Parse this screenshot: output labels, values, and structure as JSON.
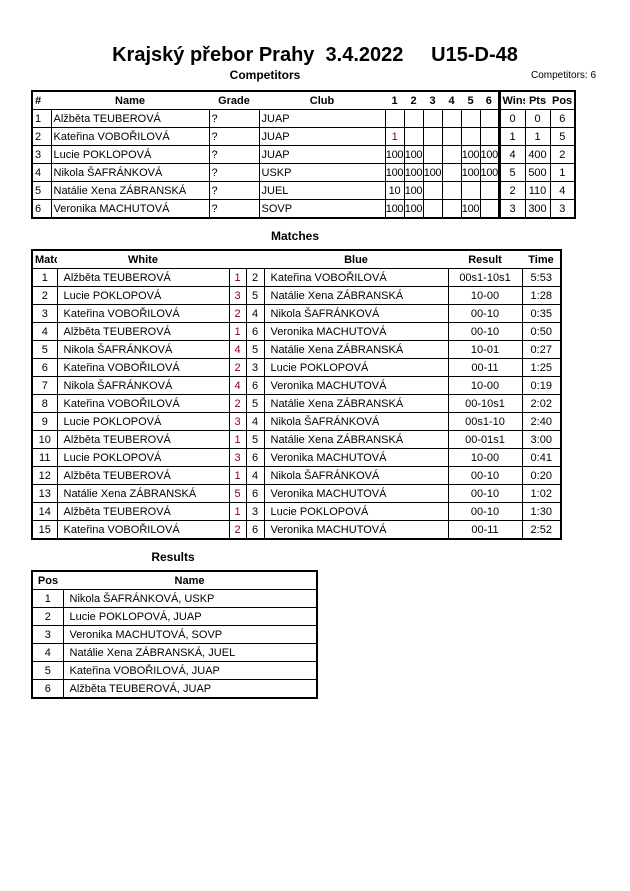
{
  "header": {
    "title": "Krajský přebor Prahy  3.4.2022     U15-D-48",
    "competitors_heading": "Competitors",
    "competitors_count": "Competitors: 6"
  },
  "competitors": {
    "columns": [
      "#",
      "Name",
      "Grade",
      "Club",
      "1",
      "2",
      "3",
      "4",
      "5",
      "6",
      "Wins",
      "Pts",
      "Pos"
    ],
    "rows": [
      {
        "n": "1",
        "name": "Alžběta TEUBEROVÁ",
        "grade": "?",
        "club": "JUAP",
        "s": [
          "",
          "",
          "",
          "",
          "",
          ""
        ],
        "wins": "0",
        "pts": "0",
        "pos": "6"
      },
      {
        "n": "2",
        "name": "Kateřina VOBOŘILOVÁ",
        "grade": "?",
        "club": "JUAP",
        "s": [
          "1",
          "",
          "",
          "",
          "",
          ""
        ],
        "wins": "1",
        "pts": "1",
        "pos": "5"
      },
      {
        "n": "3",
        "name": "Lucie POKLOPOVÁ",
        "grade": "?",
        "club": "JUAP",
        "s": [
          "100",
          "100",
          "",
          "",
          "100",
          "100"
        ],
        "wins": "4",
        "pts": "400",
        "pos": "2"
      },
      {
        "n": "4",
        "name": "Nikola ŠAFRÁNKOVÁ",
        "grade": "?",
        "club": "USKP",
        "s": [
          "100",
          "100",
          "100",
          "",
          "100",
          "100"
        ],
        "wins": "5",
        "pts": "500",
        "pos": "1"
      },
      {
        "n": "5",
        "name": "Natálie Xena ZÁBRANSKÁ",
        "grade": "?",
        "club": "JUEL",
        "s": [
          "10",
          "100",
          "",
          "",
          "",
          ""
        ],
        "wins": "2",
        "pts": "110",
        "pos": "4"
      },
      {
        "n": "6",
        "name": "Veronika MACHUTOVÁ",
        "grade": "?",
        "club": "SOVP",
        "s": [
          "100",
          "100",
          "",
          "",
          "100",
          ""
        ],
        "wins": "3",
        "pts": "300",
        "pos": "3"
      }
    ]
  },
  "matches": {
    "heading": "Matches",
    "columns": [
      "Match",
      "White",
      "Blue",
      "Result",
      "Time"
    ],
    "rows": [
      [
        "1",
        "Alžběta TEUBEROVÁ",
        "1",
        "2",
        "Kateřina VOBOŘILOVÁ",
        "00s1-10s1",
        "5:53"
      ],
      [
        "2",
        "Lucie POKLOPOVÁ",
        "3",
        "5",
        "Natálie Xena ZÁBRANSKÁ",
        "10-00",
        "1:28"
      ],
      [
        "3",
        "Kateřina VOBOŘILOVÁ",
        "2",
        "4",
        "Nikola ŠAFRÁNKOVÁ",
        "00-10",
        "0:35"
      ],
      [
        "4",
        "Alžběta TEUBEROVÁ",
        "1",
        "6",
        "Veronika MACHUTOVÁ",
        "00-10",
        "0:50"
      ],
      [
        "5",
        "Nikola ŠAFRÁNKOVÁ",
        "4",
        "5",
        "Natálie Xena ZÁBRANSKÁ",
        "10-01",
        "0:27"
      ],
      [
        "6",
        "Kateřina VOBOŘILOVÁ",
        "2",
        "3",
        "Lucie POKLOPOVÁ",
        "00-11",
        "1:25"
      ],
      [
        "7",
        "Nikola ŠAFRÁNKOVÁ",
        "4",
        "6",
        "Veronika MACHUTOVÁ",
        "10-00",
        "0:19"
      ],
      [
        "8",
        "Kateřina VOBOŘILOVÁ",
        "2",
        "5",
        "Natálie Xena ZÁBRANSKÁ",
        "00-10s1",
        "2:02"
      ],
      [
        "9",
        "Lucie POKLOPOVÁ",
        "3",
        "4",
        "Nikola ŠAFRÁNKOVÁ",
        "00s1-10",
        "2:40"
      ],
      [
        "10",
        "Alžběta TEUBEROVÁ",
        "1",
        "5",
        "Natálie Xena ZÁBRANSKÁ",
        "00-01s1",
        "3:00"
      ],
      [
        "11",
        "Lucie POKLOPOVÁ",
        "3",
        "6",
        "Veronika MACHUTOVÁ",
        "10-00",
        "0:41"
      ],
      [
        "12",
        "Alžběta TEUBEROVÁ",
        "1",
        "4",
        "Nikola ŠAFRÁNKOVÁ",
        "00-10",
        "0:20"
      ],
      [
        "13",
        "Natálie Xena ZÁBRANSKÁ",
        "5",
        "6",
        "Veronika MACHUTOVÁ",
        "00-10",
        "1:02"
      ],
      [
        "14",
        "Alžběta TEUBEROVÁ",
        "1",
        "3",
        "Lucie POKLOPOVÁ",
        "00-10",
        "1:30"
      ],
      [
        "15",
        "Kateřina VOBOŘILOVÁ",
        "2",
        "6",
        "Veronika MACHUTOVÁ",
        "00-11",
        "2:52"
      ]
    ]
  },
  "results": {
    "heading": "Results",
    "columns": [
      "Pos",
      "Name"
    ],
    "rows": [
      [
        "1",
        "Nikola ŠAFRÁNKOVÁ, USKP"
      ],
      [
        "2",
        "Lucie POKLOPOVÁ, JUAP"
      ],
      [
        "3",
        "Veronika MACHUTOVÁ, SOVP"
      ],
      [
        "4",
        "Natálie Xena ZÁBRANSKÁ, JUEL"
      ],
      [
        "5",
        "Kateřina VOBOŘILOVÁ, JUAP"
      ],
      [
        "6",
        "Alžběta TEUBEROVÁ, JUAP"
      ]
    ]
  },
  "colors": {
    "white_number": "#800040"
  }
}
